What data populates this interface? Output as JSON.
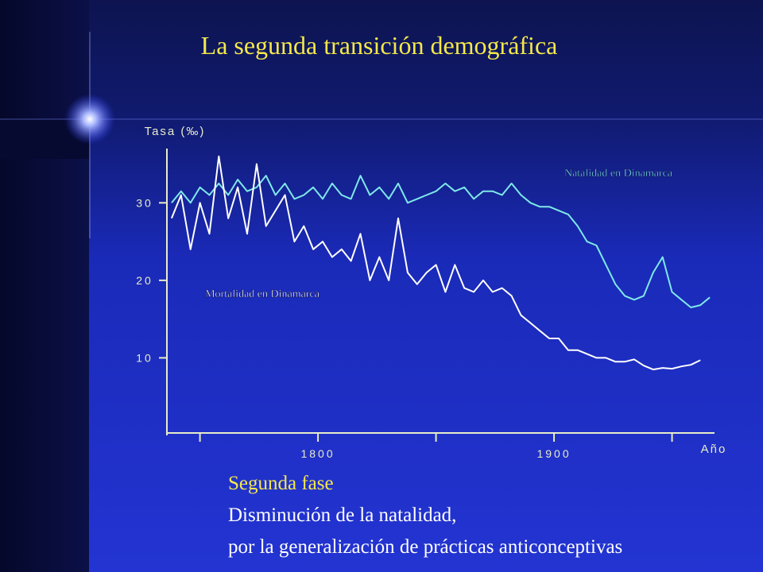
{
  "slide_title": "La segunda transición demográfica",
  "chart_data": {
    "type": "line",
    "y_label": "Tasa (‰)",
    "x_label": "Año",
    "x": [
      1738,
      1742,
      1746,
      1750,
      1754,
      1758,
      1762,
      1766,
      1770,
      1774,
      1778,
      1782,
      1786,
      1790,
      1794,
      1798,
      1802,
      1806,
      1810,
      1814,
      1818,
      1822,
      1826,
      1830,
      1834,
      1838,
      1842,
      1846,
      1850,
      1854,
      1858,
      1862,
      1866,
      1870,
      1874,
      1878,
      1882,
      1886,
      1890,
      1894,
      1898,
      1902,
      1906,
      1910,
      1914,
      1918,
      1922,
      1926,
      1930,
      1934,
      1938,
      1942,
      1946,
      1950,
      1954,
      1958,
      1962,
      1966
    ],
    "series": [
      {
        "name": "Natalidad en Dinamarca",
        "color": "#7fe8e8",
        "values": [
          30,
          31.5,
          30,
          32,
          31,
          32.5,
          31,
          33,
          31.5,
          32,
          33.5,
          31,
          32.5,
          30.5,
          31,
          32,
          30.5,
          32.5,
          31,
          30.5,
          33.5,
          31,
          32,
          30.5,
          32.5,
          30,
          30.5,
          31,
          31.5,
          32.5,
          31.5,
          32,
          30.5,
          31.5,
          31.5,
          31,
          32.5,
          31,
          30,
          29.5,
          29.5,
          29,
          28.5,
          27,
          25,
          24.5,
          22,
          19.5,
          18,
          17.5,
          18,
          21,
          23,
          18.5,
          17.5,
          16.5,
          16.8,
          17.8
        ]
      },
      {
        "name": "Mortalidad en Dinamarca",
        "color": "#ffffff",
        "values": [
          28,
          31,
          24,
          30,
          26,
          36,
          28,
          32,
          26,
          35,
          27,
          29,
          31,
          25,
          27,
          24,
          25,
          23,
          24,
          22.5,
          26,
          20,
          23,
          20,
          28,
          21,
          19.5,
          21,
          22,
          18.5,
          22,
          19,
          18.5,
          20,
          18.5,
          19,
          18,
          15.5,
          14.5,
          13.5,
          12.5,
          12.5,
          11,
          11,
          10.5,
          10,
          10,
          9.5,
          9.5,
          9.8,
          9,
          8.5,
          8.7,
          8.6,
          8.9,
          9.1,
          9.7,
          null
        ]
      }
    ],
    "xlim": [
      1736,
      1968
    ],
    "xticks": [
      1800,
      1900
    ],
    "x_minor_ticks": [
      1750,
      1850,
      1950
    ],
    "ylim": [
      0,
      37
    ],
    "yticks": [
      10,
      20,
      30
    ]
  },
  "notes": [
    "Segunda fase",
    "Disminución de la natalidad,",
    "por la generalización de prácticas anticonceptivas"
  ]
}
